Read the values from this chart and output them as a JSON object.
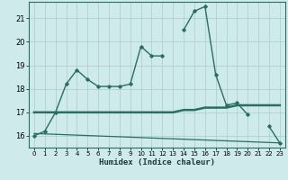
{
  "xlabel": "Humidex (Indice chaleur)",
  "x": [
    0,
    1,
    2,
    3,
    4,
    5,
    6,
    7,
    8,
    9,
    10,
    11,
    12,
    13,
    14,
    15,
    16,
    17,
    18,
    19,
    20,
    21,
    22,
    23
  ],
  "line1": [
    16.0,
    16.2,
    17.0,
    18.2,
    18.8,
    18.4,
    18.1,
    18.1,
    18.1,
    18.2,
    19.8,
    19.4,
    19.4,
    null,
    20.5,
    21.3,
    21.5,
    18.6,
    17.3,
    17.4,
    16.9,
    null,
    16.4,
    15.7
  ],
  "line2": [
    17.0,
    17.0,
    17.0,
    17.0,
    17.0,
    17.0,
    17.0,
    17.0,
    17.0,
    17.0,
    17.0,
    17.0,
    17.0,
    17.0,
    17.1,
    17.1,
    17.2,
    17.2,
    17.2,
    17.3,
    17.3,
    17.3,
    17.3,
    17.3
  ],
  "line3_start": 16.1,
  "line3_end": 15.7,
  "color": "#2a6e60",
  "bg_color": "#ceeaea",
  "grid_color": "#aacccc",
  "ylim": [
    15.5,
    21.7
  ],
  "yticks": [
    16,
    17,
    18,
    19,
    20,
    21
  ],
  "xticks": [
    0,
    1,
    2,
    3,
    4,
    5,
    6,
    7,
    8,
    9,
    10,
    11,
    12,
    13,
    14,
    15,
    16,
    17,
    18,
    19,
    20,
    21,
    22,
    23
  ]
}
